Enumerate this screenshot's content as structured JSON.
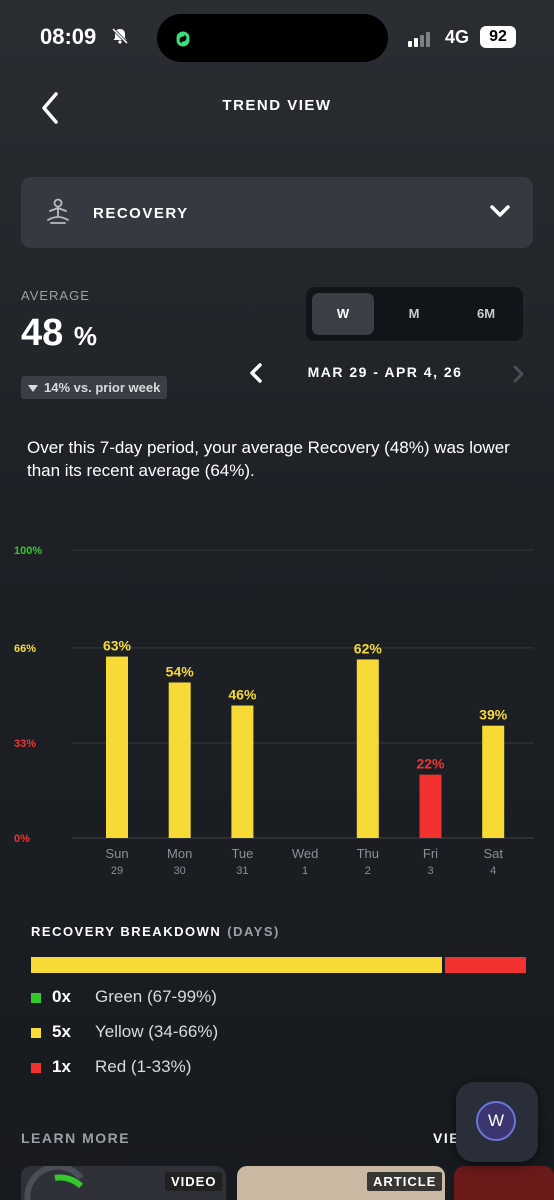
{
  "status_bar": {
    "time": "08:09",
    "network": "4G",
    "battery": "92"
  },
  "header": {
    "title": "TREND VIEW"
  },
  "metric_selector": {
    "label": "RECOVERY",
    "icon": "recovery-meditation-icon"
  },
  "average": {
    "label": "AVERAGE",
    "value": "48",
    "unit": "%",
    "delta": "14% vs. prior week"
  },
  "period_tabs": [
    {
      "label": "W",
      "selected": true
    },
    {
      "label": "M",
      "selected": false
    },
    {
      "label": "6M",
      "selected": false
    }
  ],
  "date_range": "MAR 29 - APR 4, 26",
  "summary": "Over this 7-day period, your average Recovery (48%) was lower than its recent average (64%).",
  "chart_data": {
    "type": "bar",
    "categories": [
      "Sun 29",
      "Mon 30",
      "Tue 31",
      "Wed 1",
      "Thu 2",
      "Fri 3",
      "Sat 4"
    ],
    "day_names": [
      "Sun",
      "Mon",
      "Tue",
      "Wed",
      "Thu",
      "Fri",
      "Sat"
    ],
    "day_numbers": [
      "29",
      "30",
      "31",
      "1",
      "2",
      "3",
      "4"
    ],
    "values": [
      63,
      54,
      46,
      null,
      62,
      22,
      39
    ],
    "value_labels": [
      "63%",
      "54%",
      "46%",
      "",
      "62%",
      "22%",
      "39%"
    ],
    "bar_colors": [
      "#f8da37",
      "#f8da37",
      "#f8da37",
      null,
      "#f8da37",
      "#f23131",
      "#f8da37"
    ],
    "ylim": [
      0,
      100
    ],
    "y_ticks": [
      {
        "value": 100,
        "label": "100%",
        "color": "#34c92b"
      },
      {
        "value": 66,
        "label": "66%",
        "color": "#f8da37"
      },
      {
        "value": 33,
        "label": "33%",
        "color": "#f23131"
      },
      {
        "value": 0,
        "label": "0%",
        "color": "#f23131"
      }
    ],
    "grid": true
  },
  "breakdown": {
    "title": "RECOVERY BREAKDOWN",
    "subtitle": "(DAYS)",
    "items": [
      {
        "count": "0x",
        "label": "Green (67-99%)",
        "color": "#34c92b",
        "days": 0
      },
      {
        "count": "5x",
        "label": "Yellow (34-66%)",
        "color": "#f8da37",
        "days": 5
      },
      {
        "count": "1x",
        "label": "Red (1-33%)",
        "color": "#f23131",
        "days": 1
      }
    ]
  },
  "learn_more": {
    "title": "LEARN MORE",
    "view_all": "VIE",
    "cards": [
      {
        "tag": "VIDEO"
      },
      {
        "tag": "ARTICLE"
      }
    ]
  },
  "fab": {
    "label": "W"
  },
  "colors": {
    "yellow": "#f8da37",
    "red": "#f23131",
    "green": "#34c92b"
  }
}
